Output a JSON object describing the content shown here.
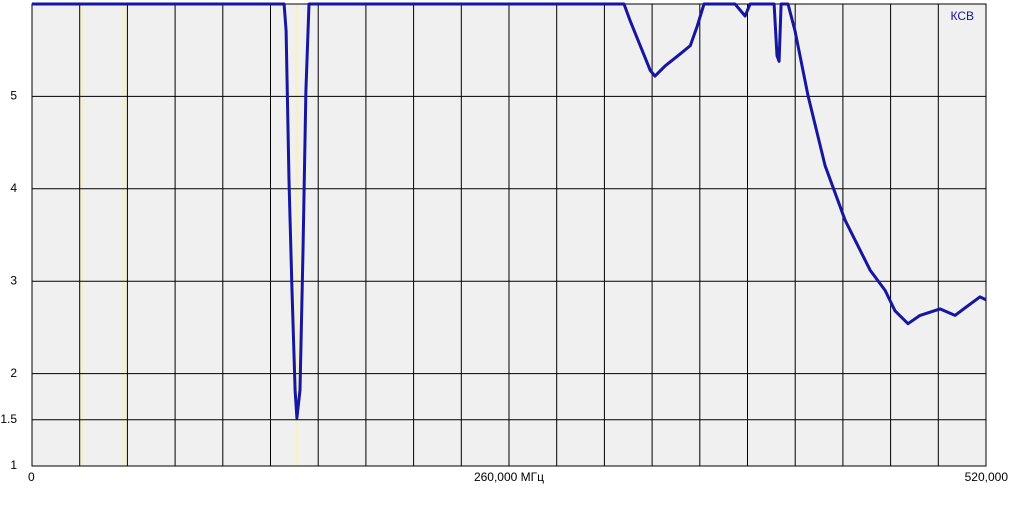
{
  "chart_data": {
    "type": "line",
    "x": [
      0,
      137.4,
      138.5,
      140.1,
      141.7,
      143.4,
      144.4,
      146.1,
      147.7,
      149.3,
      151,
      322.7,
      326,
      331.5,
      337,
      339.6,
      345.1,
      353.3,
      358.8,
      362.6,
      366.3,
      383.2,
      388.7,
      391.4,
      404.5,
      406.1,
      407.2,
      408.3,
      412.1,
      415.9,
      423,
      432.3,
      443.2,
      456.8,
      465,
      470.4,
      477.5,
      484,
      494.9,
      503.1,
      508.5,
      516.7,
      520
    ],
    "series": [
      {
        "name": "КСВ",
        "color": "#1616a0",
        "values": [
          6,
          6,
          5.71,
          4.09,
          2.9,
          1.82,
          1.52,
          1.82,
          3.33,
          5.06,
          6,
          6,
          5.82,
          5.55,
          5.28,
          5.22,
          5.33,
          5.46,
          5.55,
          5.76,
          6,
          6,
          5.87,
          6,
          6,
          5.44,
          5.38,
          6,
          6,
          5.71,
          5.01,
          4.25,
          3.66,
          3.12,
          2.9,
          2.68,
          2.54,
          2.63,
          2.7,
          2.63,
          2.71,
          2.83,
          2.8
        ]
      }
    ],
    "xlim": [
      0,
      520
    ],
    "xticks": [
      0,
      {
        "value": 260,
        "label": "260,000 МГц"
      },
      {
        "value": 520,
        "label": "520,000"
      }
    ],
    "xgrid": [
      0,
      26,
      52,
      78,
      104,
      130,
      156,
      182,
      208,
      234,
      260,
      286,
      312,
      338,
      364,
      390,
      416,
      442,
      468,
      494,
      520
    ],
    "ylim": [
      1,
      6
    ],
    "yticks": [
      1,
      1.5,
      2,
      3,
      4,
      5
    ],
    "grid": true,
    "markers": [
      27.3,
      50.1,
      144.4
    ],
    "marker_color": "#f6f0c8"
  }
}
